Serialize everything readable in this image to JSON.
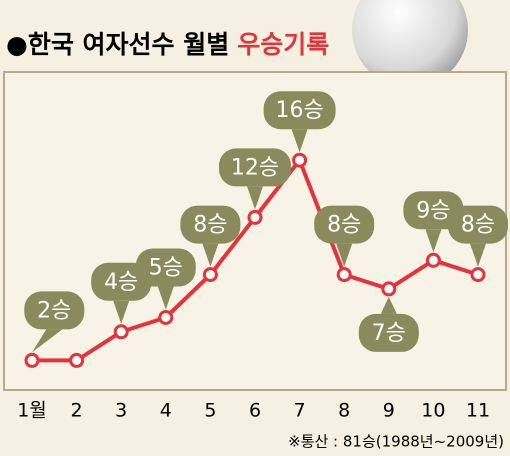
{
  "chart_data": {
    "type": "line",
    "title": "●한국 여자선수 월별",
    "title_highlight": "우승기록",
    "note": "※통산 : 81승(1988년~2009년)",
    "categories": [
      "1월",
      "2",
      "3",
      "4",
      "5",
      "6",
      "7",
      "8",
      "9",
      "10",
      "11"
    ],
    "series": [
      {
        "name": "우승",
        "color": "#e8323a",
        "values": [
          2,
          2,
          4,
          5,
          8,
          12,
          16,
          8,
          7,
          9,
          8
        ],
        "value_labels": [
          "2승",
          null,
          "4승",
          "5승",
          "8승",
          "12승",
          "16승",
          "8승",
          "7승",
          "9승",
          "8승"
        ]
      }
    ],
    "highlight_color": "#e8323a",
    "label_color": "#8b8a5c"
  }
}
